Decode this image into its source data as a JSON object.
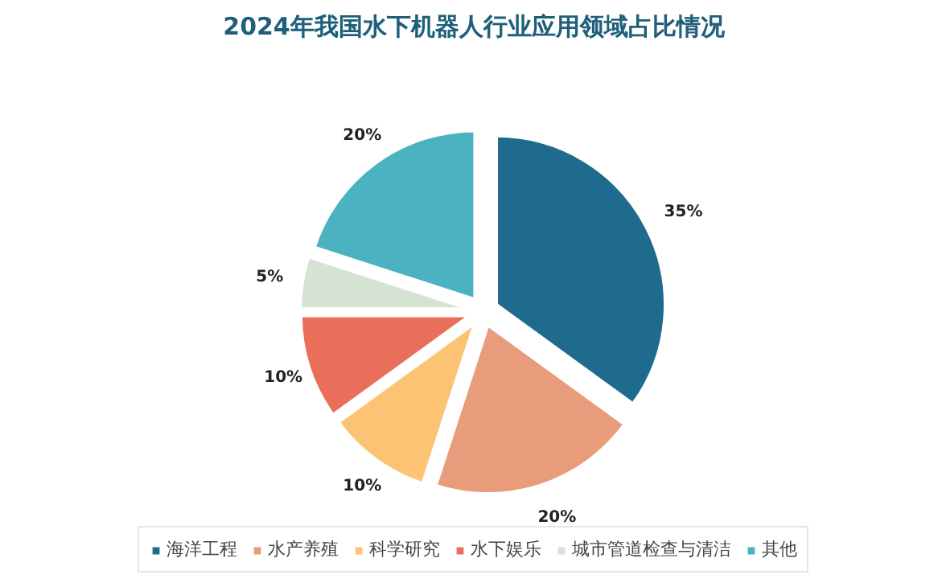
{
  "chart_data": {
    "type": "pie",
    "title": "2024年我国水下机器人行业应用领域占比情况",
    "categories": [
      "海洋工程",
      "水产养殖",
      "科学研究",
      "水下娱乐",
      "城市管道检查与清洁",
      "其他"
    ],
    "values": [
      35,
      20,
      10,
      10,
      5,
      20
    ],
    "colors": [
      "#1f6b8e",
      "#e89c7c",
      "#fdc374",
      "#ea6f5a",
      "#d5e3d3",
      "#4ab3bf"
    ],
    "value_labels": [
      "35%",
      "20%",
      "10%",
      "10%",
      "5%",
      "20%"
    ],
    "legend": "bottom"
  }
}
